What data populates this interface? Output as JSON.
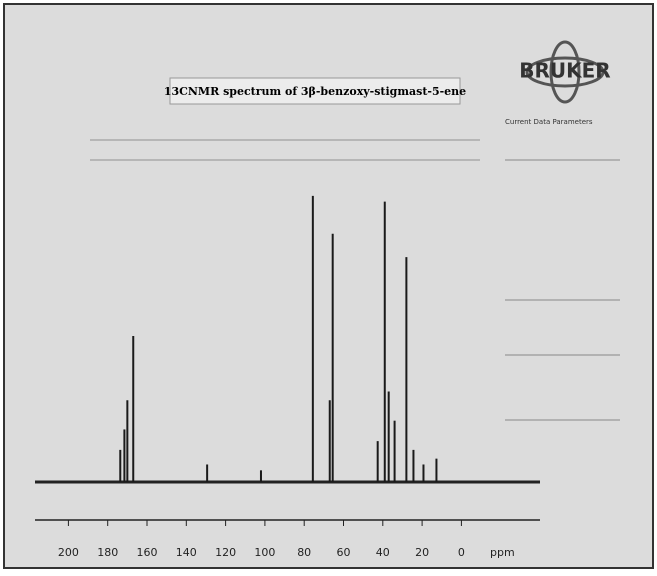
{
  "chart_data": {
    "type": "spectrum",
    "title": "13CNMR spectrum of 3β-benzoxy-stigmast-5-ene",
    "x_label": "ppm",
    "brand": "BRUKER",
    "panel_title": "Current Data Parameters",
    "x": [
      173.6,
      171.5,
      170,
      167,
      129.4,
      102,
      75.6,
      67,
      65.5,
      42.6,
      39,
      37,
      34,
      28,
      24.4,
      19.3,
      12.7
    ],
    "values": [
      11,
      18,
      28,
      50,
      6,
      4,
      98,
      28,
      85,
      14,
      96,
      31,
      21,
      77,
      11,
      6,
      8
    ],
    "color": "#1a1a1a",
    "xlim": [
      217,
      -40
    ],
    "ylim": [
      0,
      100
    ],
    "xticks": [
      200,
      180,
      160,
      140,
      120,
      100,
      80,
      60,
      40,
      20,
      0
    ]
  }
}
